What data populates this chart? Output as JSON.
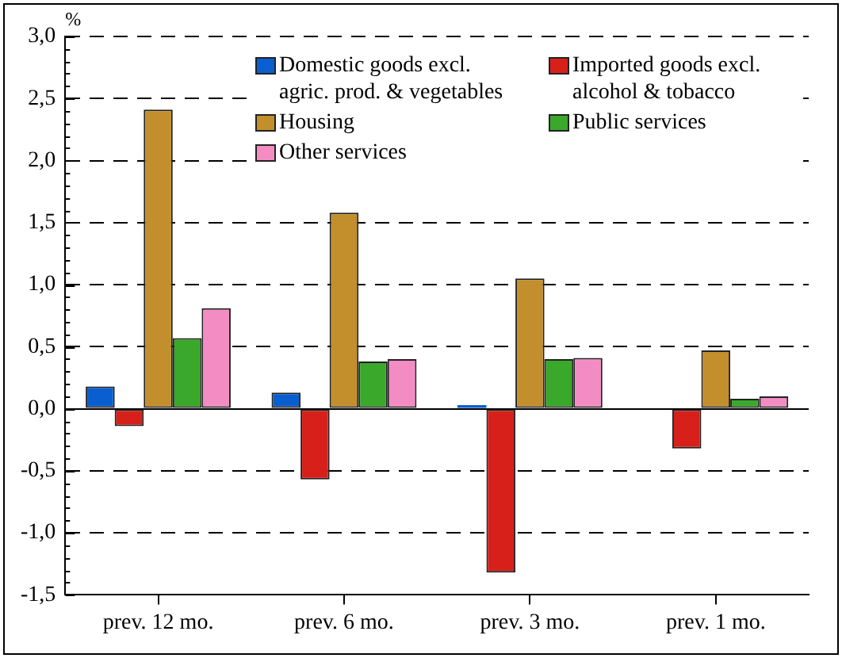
{
  "chart_data": {
    "type": "bar",
    "ylabel": "%",
    "categories": [
      "prev. 12 mo.",
      "prev. 6 mo.",
      "prev. 3 mo.",
      "prev. 1 mo."
    ],
    "series": [
      {
        "name": "Domestic goods excl. agric. prod. & vegetables",
        "color": "#0a5fd0",
        "values": [
          0.18,
          0.13,
          0.03,
          null
        ]
      },
      {
        "name": "Imported goods excl. alcohol & tobacco",
        "color": "#d8201a",
        "values": [
          -0.14,
          -0.57,
          -1.32,
          -0.32
        ]
      },
      {
        "name": "Housing",
        "color": "#c28f2c",
        "values": [
          2.41,
          1.58,
          1.05,
          0.47
        ]
      },
      {
        "name": "Public services",
        "color": "#3aa82a",
        "values": [
          0.57,
          0.38,
          0.4,
          0.08
        ]
      },
      {
        "name": "Other services",
        "color": "#f48cc4",
        "values": [
          0.81,
          0.4,
          0.41,
          0.1
        ]
      }
    ],
    "ylim": [
      -1.5,
      3.0
    ],
    "yticks": [
      {
        "value": -1.5,
        "label": "-1,5"
      },
      {
        "value": -1.4,
        "label": null
      },
      {
        "value": -1.3,
        "label": null
      },
      {
        "value": -1.2,
        "label": null
      },
      {
        "value": -1.1,
        "label": null
      },
      {
        "value": -1.0,
        "label": "-1,0"
      },
      {
        "value": -0.9,
        "label": null
      },
      {
        "value": -0.8,
        "label": null
      },
      {
        "value": -0.7,
        "label": null
      },
      {
        "value": -0.6,
        "label": null
      },
      {
        "value": -0.5,
        "label": "-0,5"
      },
      {
        "value": -0.4,
        "label": null
      },
      {
        "value": -0.3,
        "label": null
      },
      {
        "value": -0.2,
        "label": null
      },
      {
        "value": -0.1,
        "label": null
      },
      {
        "value": 0,
        "label": "0,0"
      },
      {
        "value": 0.1,
        "label": null
      },
      {
        "value": 0.2,
        "label": null
      },
      {
        "value": 0.3,
        "label": null
      },
      {
        "value": 0.4,
        "label": null
      },
      {
        "value": 0.5,
        "label": "0,5"
      },
      {
        "value": 0.6,
        "label": null
      },
      {
        "value": 0.7,
        "label": null
      },
      {
        "value": 0.8,
        "label": null
      },
      {
        "value": 0.9,
        "label": null
      },
      {
        "value": 1.0,
        "label": "1,0"
      },
      {
        "value": 1.1,
        "label": null
      },
      {
        "value": 1.2,
        "label": null
      },
      {
        "value": 1.3,
        "label": null
      },
      {
        "value": 1.4,
        "label": null
      },
      {
        "value": 1.5,
        "label": "1,5"
      },
      {
        "value": 1.6,
        "label": null
      },
      {
        "value": 1.7,
        "label": null
      },
      {
        "value": 1.8,
        "label": null
      },
      {
        "value": 1.9,
        "label": null
      },
      {
        "value": 2.0,
        "label": "2,0"
      },
      {
        "value": 2.1,
        "label": null
      },
      {
        "value": 2.2,
        "label": null
      },
      {
        "value": 2.3,
        "label": null
      },
      {
        "value": 2.4,
        "label": null
      },
      {
        "value": 2.5,
        "label": "2,5"
      },
      {
        "value": 2.6,
        "label": null
      },
      {
        "value": 2.7,
        "label": null
      },
      {
        "value": 2.8,
        "label": null
      },
      {
        "value": 2.9,
        "label": null
      },
      {
        "value": 3.0,
        "label": "3,0"
      }
    ],
    "grid": "y",
    "legend": "top right"
  }
}
